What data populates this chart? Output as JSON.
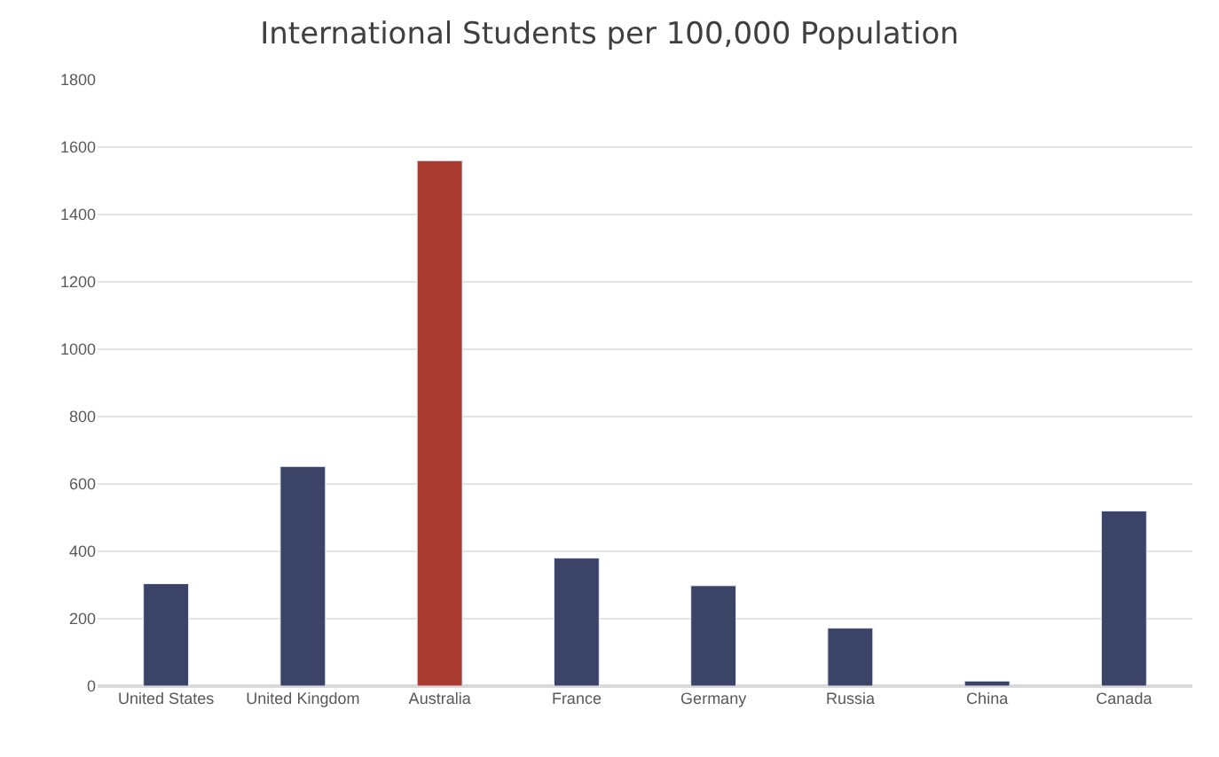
{
  "chart_data": {
    "type": "bar",
    "title": "International Students per 100,000 Population",
    "categories": [
      "United States",
      "United Kingdom",
      "Australia",
      "France",
      "Germany",
      "Russia",
      "China",
      "Canada"
    ],
    "values": [
      304,
      652,
      1560,
      380,
      298,
      172,
      15,
      520
    ],
    "colors": [
      "#3b4466",
      "#3b4466",
      "#a93a30",
      "#3b4466",
      "#3b4466",
      "#3b4466",
      "#3b4466",
      "#3b4466"
    ],
    "ylim": [
      0,
      1800
    ],
    "yticks": [
      0,
      200,
      400,
      600,
      800,
      1000,
      1200,
      1400,
      1600,
      1800
    ],
    "grid": "y",
    "legend": false
  }
}
